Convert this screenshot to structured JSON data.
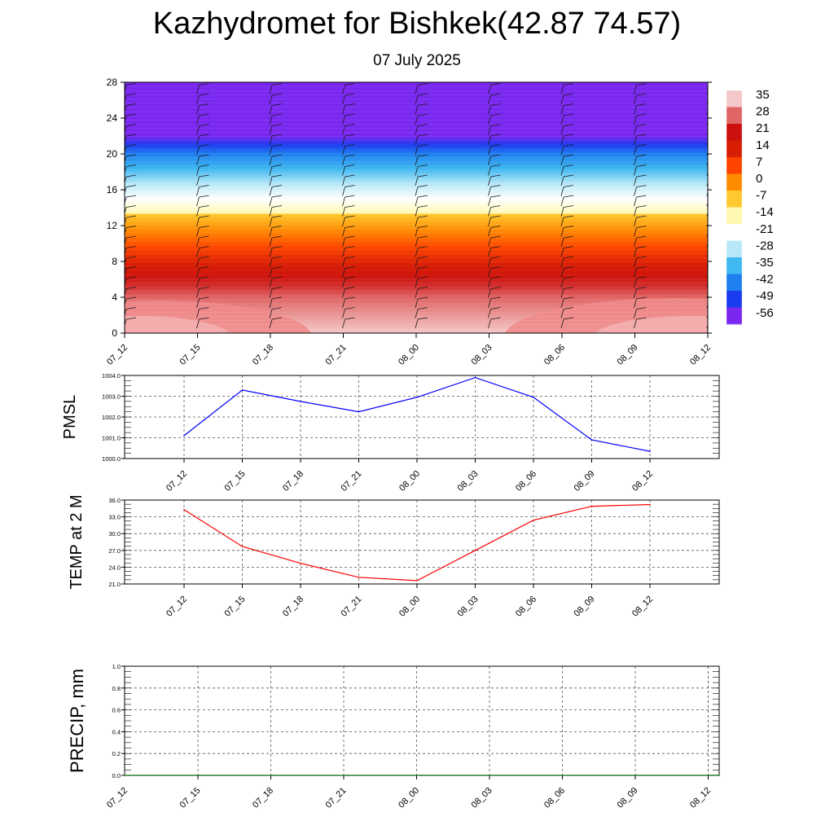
{
  "title": "Kazhydromet for Bishkek(42.87 74.57)",
  "subtitle": "07 July 2025",
  "chart_data": [
    {
      "type": "heatmap",
      "name": "vertical-temperature-section",
      "x_ticks": [
        "07_12",
        "07_15",
        "07_18",
        "07_21",
        "08_00",
        "08_03",
        "08_06",
        "08_09",
        "08_12"
      ],
      "y_ticks": [
        0,
        4,
        8,
        12,
        16,
        20,
        24,
        28
      ],
      "ylim": [
        0,
        28
      ],
      "colorbar": {
        "ticks": [
          35,
          28,
          21,
          14,
          7,
          0,
          -7,
          -14,
          -21,
          -28,
          -35,
          -42,
          -49,
          -56
        ],
        "colors_top_to_bottom": [
          "#f4c8c8",
          "#e06565",
          "#cc1010",
          "#d81e05",
          "#ff4400",
          "#ff8c00",
          "#ffc830",
          "#fff8b0",
          "#ffffff",
          "#b8e8f8",
          "#40b8f0",
          "#2080f0",
          "#1c3cf0",
          "#7a28f0"
        ]
      },
      "layers": [
        {
          "from": 0,
          "to": 4,
          "temp_range": [
            28,
            35
          ]
        },
        {
          "from": 4,
          "to": 13.3,
          "temp_range": [
            -7,
            28
          ]
        },
        {
          "from": 13.3,
          "to": 20,
          "temp_range": [
            -42,
            -14
          ]
        },
        {
          "from": 20,
          "to": 22,
          "temp_range": [
            -56,
            -42
          ]
        },
        {
          "from": 22,
          "to": 28,
          "temp_range": [
            -56,
            -56
          ]
        }
      ]
    },
    {
      "type": "line",
      "name": "pmsl",
      "ylabel": "PMSL",
      "categories": [
        "07_12",
        "07_15",
        "07_18",
        "07_21",
        "08_00",
        "08_03",
        "08_06",
        "08_09",
        "08_12"
      ],
      "values": [
        1001.1,
        1003.3,
        1002.75,
        1002.25,
        1002.95,
        1003.9,
        1002.95,
        1000.9,
        1000.35
      ],
      "y_ticks": [
        "1000.0",
        "1001.0",
        "1002.0",
        "1003.0",
        "1004.0"
      ],
      "ylim": [
        1000,
        1004
      ],
      "color": "#0000ff"
    },
    {
      "type": "line",
      "name": "temp-2m",
      "ylabel": "TEMP at 2 M",
      "categories": [
        "07_12",
        "07_15",
        "07_18",
        "07_21",
        "08_00",
        "08_03",
        "08_06",
        "08_09",
        "08_12"
      ],
      "values": [
        34.3,
        27.7,
        24.7,
        22.2,
        21.6,
        27.0,
        32.4,
        34.9,
        35.2
      ],
      "y_ticks": [
        "21.0",
        "24.0",
        "27.0",
        "30.0",
        "33.0",
        "36.0"
      ],
      "ylim": [
        21,
        36
      ],
      "color": "#ff0000"
    },
    {
      "type": "line",
      "name": "precip",
      "ylabel": "PRECIP, mm",
      "categories": [
        "07_12",
        "07_15",
        "07_18",
        "07_21",
        "08_00",
        "08_03",
        "08_06",
        "08_09",
        "08_12"
      ],
      "values": [
        0,
        0,
        0,
        0,
        0,
        0,
        0,
        0,
        0
      ],
      "y_ticks": [
        "0.0",
        "0.2",
        "0.4",
        "0.6",
        "0.8",
        "1.0"
      ],
      "ylim": [
        0,
        1
      ],
      "color": "#006400"
    }
  ]
}
